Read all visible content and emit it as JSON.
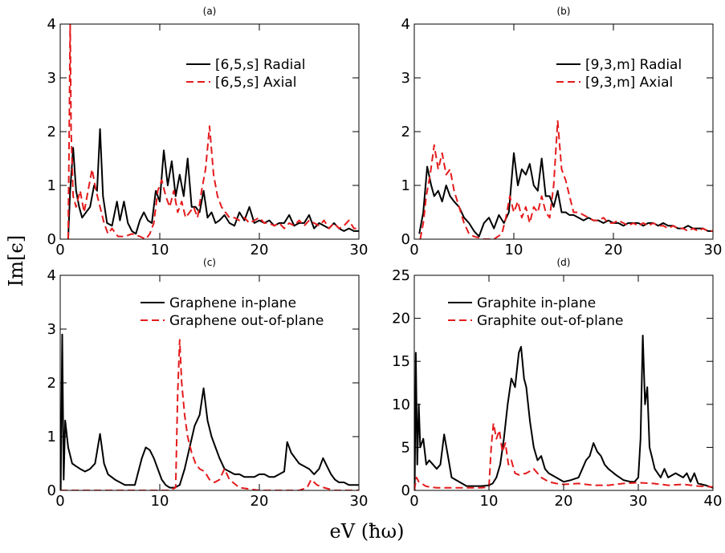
{
  "figure": {
    "ylabel": "Im[ϵ]",
    "xlabel": "eV (ħω)"
  },
  "chart_data": [
    {
      "type": "line",
      "panel": "(a)",
      "xlim": [
        0,
        30
      ],
      "ylim": [
        0,
        4
      ],
      "xticks": [
        0,
        10,
        20,
        30
      ],
      "yticks": [
        0,
        1,
        2,
        3,
        4
      ],
      "legend_position": "top-right",
      "series": [
        {
          "name": "[6,5,s] Radial",
          "color": "#000000",
          "dash": "solid",
          "x": [
            0.8,
            1.0,
            1.3,
            1.6,
            1.9,
            2.2,
            2.6,
            3.0,
            3.4,
            3.7,
            4.0,
            4.3,
            4.7,
            5.2,
            5.7,
            6.0,
            6.4,
            6.8,
            7.2,
            7.6,
            8.0,
            8.4,
            8.8,
            9.2,
            9.6,
            10.0,
            10.4,
            10.8,
            11.2,
            11.6,
            12.0,
            12.4,
            12.8,
            13.2,
            13.6,
            14.0,
            14.4,
            14.8,
            15.2,
            15.6,
            16.0,
            16.5,
            17.0,
            17.5,
            18.0,
            18.5,
            19.0,
            19.5,
            20.0,
            20.5,
            21.0,
            21.5,
            22.0,
            22.5,
            23.0,
            23.5,
            24.0,
            24.5,
            25.0,
            25.5,
            26.0,
            26.5,
            27.0,
            27.5,
            28.0,
            28.5,
            29.0,
            29.5,
            30.0
          ],
          "y": [
            0.0,
            0.9,
            1.7,
            0.9,
            0.6,
            0.4,
            0.5,
            0.6,
            1.0,
            0.9,
            2.05,
            0.8,
            0.3,
            0.25,
            0.7,
            0.35,
            0.7,
            0.3,
            0.15,
            0.1,
            0.35,
            0.5,
            0.35,
            0.3,
            0.9,
            0.7,
            1.65,
            1.0,
            1.45,
            0.8,
            1.2,
            0.8,
            1.5,
            0.6,
            0.6,
            0.5,
            0.9,
            0.4,
            0.5,
            0.3,
            0.35,
            0.45,
            0.3,
            0.25,
            0.5,
            0.35,
            0.6,
            0.3,
            0.35,
            0.3,
            0.35,
            0.25,
            0.3,
            0.3,
            0.45,
            0.25,
            0.3,
            0.3,
            0.45,
            0.2,
            0.3,
            0.25,
            0.2,
            0.3,
            0.2,
            0.15,
            0.2,
            0.15,
            0.15
          ]
        },
        {
          "name": "[6,5,s] Axial",
          "color": "#e41a1c",
          "dash": "dashed",
          "x": [
            0.8,
            0.9,
            1.0,
            1.1,
            1.3,
            1.6,
            2.0,
            2.4,
            2.8,
            3.2,
            3.6,
            4.0,
            4.4,
            4.8,
            5.2,
            5.8,
            6.5,
            7.2,
            8.0,
            8.6,
            9.0,
            9.4,
            9.8,
            10.2,
            10.6,
            11.0,
            11.4,
            11.8,
            12.2,
            12.6,
            13.0,
            13.4,
            13.8,
            14.2,
            14.6,
            15.0,
            15.4,
            15.8,
            16.2,
            16.6,
            17.0,
            17.5,
            18.0,
            18.5,
            19.0,
            19.5,
            20.0,
            20.5,
            21.0,
            21.5,
            22.0,
            22.5,
            23.0,
            23.5,
            24.0,
            24.5,
            25.0,
            25.5,
            26.0,
            26.5,
            27.0,
            27.5,
            28.0,
            28.5,
            29.0,
            29.5,
            30.0
          ],
          "y": [
            0.0,
            2.0,
            4.0,
            2.0,
            0.8,
            0.6,
            0.9,
            0.5,
            0.9,
            1.3,
            0.9,
            0.6,
            0.3,
            0.1,
            0.2,
            0.05,
            0.05,
            0.1,
            0.05,
            0.0,
            0.1,
            0.3,
            0.9,
            1.1,
            0.8,
            0.6,
            0.9,
            0.5,
            0.7,
            0.4,
            0.5,
            0.6,
            0.4,
            0.9,
            1.3,
            2.1,
            1.2,
            0.8,
            0.6,
            0.5,
            0.4,
            0.4,
            0.35,
            0.4,
            0.3,
            0.35,
            0.4,
            0.3,
            0.3,
            0.25,
            0.3,
            0.2,
            0.3,
            0.25,
            0.35,
            0.25,
            0.35,
            0.3,
            0.25,
            0.35,
            0.2,
            0.3,
            0.2,
            0.25,
            0.35,
            0.2,
            0.2
          ]
        }
      ]
    },
    {
      "type": "line",
      "panel": "(b)",
      "xlim": [
        0,
        30
      ],
      "ylim": [
        0,
        4
      ],
      "xticks": [
        0,
        10,
        20,
        30
      ],
      "yticks": [
        0,
        1,
        2,
        3,
        4
      ],
      "legend_position": "top-right",
      "series": [
        {
          "name": "[9,3,m] Radial",
          "color": "#000000",
          "dash": "solid",
          "x": [
            0.5,
            0.9,
            1.3,
            1.7,
            2.0,
            2.4,
            2.8,
            3.2,
            3.6,
            4.0,
            4.5,
            5.0,
            5.5,
            6.0,
            6.5,
            7.0,
            7.5,
            8.0,
            8.5,
            9.0,
            9.5,
            10.0,
            10.4,
            10.8,
            11.2,
            11.6,
            12.0,
            12.4,
            12.8,
            13.2,
            13.6,
            14.0,
            14.4,
            14.8,
            15.2,
            15.6,
            16.0,
            16.5,
            17.0,
            17.5,
            18.0,
            18.5,
            19.0,
            19.5,
            20.0,
            20.5,
            21.0,
            21.5,
            22.0,
            22.5,
            23.0,
            23.5,
            24.0,
            24.5,
            25.0,
            25.5,
            26.0,
            26.5,
            27.0,
            27.5,
            28.0,
            28.5,
            29.0,
            29.5,
            30.0
          ],
          "y": [
            0.1,
            0.5,
            1.35,
            1.0,
            0.8,
            0.9,
            0.7,
            1.0,
            0.8,
            0.7,
            0.6,
            0.4,
            0.3,
            0.15,
            0.05,
            0.3,
            0.4,
            0.2,
            0.45,
            0.3,
            0.5,
            1.6,
            1.0,
            1.3,
            1.2,
            1.4,
            1.0,
            0.9,
            1.5,
            0.8,
            0.8,
            0.6,
            0.9,
            0.5,
            0.5,
            0.45,
            0.45,
            0.4,
            0.35,
            0.4,
            0.35,
            0.35,
            0.3,
            0.35,
            0.3,
            0.3,
            0.25,
            0.3,
            0.3,
            0.3,
            0.25,
            0.3,
            0.3,
            0.25,
            0.3,
            0.25,
            0.25,
            0.2,
            0.2,
            0.25,
            0.2,
            0.2,
            0.2,
            0.15,
            0.15
          ]
        },
        {
          "name": "[9,3,m] Axial",
          "color": "#e41a1c",
          "dash": "dashed",
          "x": [
            0.6,
            0.9,
            1.2,
            1.6,
            2.0,
            2.4,
            2.8,
            3.2,
            3.6,
            4.0,
            4.5,
            5.0,
            5.5,
            6.0,
            7.0,
            8.0,
            8.8,
            9.2,
            9.6,
            10.0,
            10.4,
            10.8,
            11.2,
            11.6,
            12.0,
            12.4,
            12.8,
            13.2,
            13.6,
            14.0,
            14.4,
            14.8,
            15.2,
            15.6,
            16.0,
            16.5,
            17.0,
            17.5,
            18.0,
            18.5,
            19.0,
            19.5,
            20.0,
            20.5,
            21.0,
            21.5,
            22.0,
            22.5,
            23.0,
            23.5,
            24.0,
            24.5,
            25.0,
            25.5,
            26.0,
            26.5,
            27.0,
            27.5,
            28.0,
            28.5,
            29.0,
            29.5,
            30.0
          ],
          "y": [
            0.0,
            0.3,
            0.8,
            1.2,
            1.75,
            1.3,
            1.6,
            1.2,
            1.3,
            0.9,
            0.6,
            0.3,
            0.1,
            0.05,
            0.0,
            0.0,
            0.1,
            0.4,
            0.8,
            0.5,
            0.7,
            0.4,
            0.6,
            0.3,
            0.6,
            0.5,
            0.8,
            0.5,
            0.4,
            1.0,
            2.2,
            1.3,
            1.1,
            0.8,
            0.5,
            0.5,
            0.45,
            0.4,
            0.35,
            0.35,
            0.4,
            0.3,
            0.3,
            0.35,
            0.3,
            0.25,
            0.3,
            0.25,
            0.3,
            0.25,
            0.3,
            0.25,
            0.25,
            0.2,
            0.25,
            0.2,
            0.2,
            0.15,
            0.2,
            0.15,
            0.2,
            0.15,
            0.15
          ]
        }
      ]
    },
    {
      "type": "line",
      "panel": "(c)",
      "xlim": [
        0,
        30
      ],
      "ylim": [
        0,
        4
      ],
      "xticks": [
        0,
        10,
        20,
        30
      ],
      "yticks": [
        0,
        1,
        2,
        3,
        4
      ],
      "legend_position": "top-right",
      "series": [
        {
          "name": "Graphene in-plane",
          "color": "#000000",
          "dash": "solid",
          "x": [
            0.05,
            0.2,
            0.35,
            0.5,
            0.8,
            1.2,
            1.6,
            2.0,
            2.5,
            3.0,
            3.5,
            4.0,
            4.4,
            4.8,
            5.5,
            6.5,
            7.5,
            8.2,
            8.6,
            9.0,
            9.4,
            9.8,
            10.2,
            10.6,
            11.0,
            11.5,
            12.0,
            12.5,
            13.0,
            13.5,
            14.0,
            14.4,
            14.8,
            15.2,
            15.6,
            16.0,
            16.5,
            17.0,
            17.5,
            18.0,
            18.5,
            19.0,
            19.5,
            20.0,
            20.5,
            21.0,
            21.5,
            22.0,
            22.5,
            22.8,
            23.2,
            23.6,
            24.0,
            24.5,
            25.0,
            25.5,
            26.0,
            26.4,
            26.8,
            27.2,
            27.6,
            28.0,
            28.5,
            29.0,
            29.5,
            30.0
          ],
          "y": [
            0.0,
            2.9,
            0.2,
            1.3,
            0.8,
            0.5,
            0.45,
            0.4,
            0.35,
            0.4,
            0.5,
            1.05,
            0.5,
            0.3,
            0.2,
            0.1,
            0.1,
            0.6,
            0.8,
            0.75,
            0.6,
            0.4,
            0.2,
            0.1,
            0.05,
            0.05,
            0.1,
            0.4,
            0.8,
            1.2,
            1.4,
            1.9,
            1.3,
            1.0,
            0.8,
            0.6,
            0.4,
            0.35,
            0.3,
            0.3,
            0.25,
            0.25,
            0.25,
            0.3,
            0.3,
            0.25,
            0.25,
            0.3,
            0.35,
            0.9,
            0.7,
            0.6,
            0.5,
            0.45,
            0.4,
            0.3,
            0.4,
            0.6,
            0.45,
            0.3,
            0.2,
            0.15,
            0.15,
            0.1,
            0.1,
            0.1
          ]
        },
        {
          "name": "Graphene out-of-plane",
          "color": "#e41a1c",
          "dash": "dashed",
          "x": [
            0.0,
            2.0,
            4.0,
            6.0,
            8.0,
            10.0,
            11.0,
            11.6,
            11.8,
            12.0,
            12.2,
            12.5,
            12.8,
            13.2,
            13.6,
            14.0,
            14.5,
            15.0,
            15.5,
            16.0,
            16.5,
            17.0,
            18.0,
            20.0,
            22.0,
            24.0,
            24.8,
            25.2,
            25.8,
            26.5,
            27.5,
            28.5,
            30.0
          ],
          "y": [
            0.0,
            0.0,
            0.0,
            0.0,
            0.0,
            0.0,
            0.0,
            0.05,
            1.8,
            2.8,
            2.0,
            1.4,
            1.0,
            0.7,
            0.5,
            0.4,
            0.35,
            0.2,
            0.15,
            0.2,
            0.4,
            0.2,
            0.05,
            0.0,
            0.0,
            0.0,
            0.05,
            0.2,
            0.1,
            0.05,
            0.0,
            0.0,
            0.0
          ]
        }
      ]
    },
    {
      "type": "line",
      "panel": "(d)",
      "xlim": [
        0,
        40
      ],
      "ylim": [
        0,
        25
      ],
      "xticks": [
        0,
        10,
        20,
        30,
        40
      ],
      "yticks": [
        0,
        5,
        10,
        15,
        20,
        25
      ],
      "legend_position": "top-right",
      "series": [
        {
          "name": "Graphite in-plane",
          "color": "#000000",
          "dash": "solid",
          "x": [
            0.05,
            0.2,
            0.4,
            0.6,
            0.8,
            1.2,
            1.6,
            2.0,
            2.5,
            3.0,
            3.5,
            4.0,
            4.5,
            5.0,
            6.0,
            7.0,
            8.0,
            9.0,
            10.0,
            10.5,
            11.0,
            11.5,
            12.0,
            12.5,
            13.0,
            13.5,
            14.0,
            14.3,
            14.7,
            15.0,
            15.5,
            16.0,
            16.5,
            17.0,
            17.5,
            18.0,
            19.0,
            20.0,
            21.0,
            22.0,
            22.5,
            23.0,
            23.5,
            24.0,
            24.5,
            25.0,
            25.5,
            26.0,
            27.0,
            28.0,
            29.0,
            29.5,
            30.0,
            30.3,
            30.6,
            30.9,
            31.2,
            31.5,
            31.8,
            32.2,
            32.6,
            33.0,
            33.5,
            34.0,
            35.0,
            36.0,
            36.5,
            37.0,
            37.5,
            38.0,
            39.0,
            40.0
          ],
          "y": [
            0.0,
            16.0,
            3.0,
            10.0,
            5.0,
            6.0,
            3.0,
            3.5,
            3.0,
            2.5,
            3.0,
            6.5,
            4.0,
            1.5,
            1.0,
            0.5,
            0.5,
            0.5,
            0.6,
            0.8,
            1.5,
            3.0,
            6.0,
            10.0,
            13.0,
            12.0,
            16.0,
            16.7,
            13.0,
            12.0,
            8.0,
            5.0,
            3.5,
            4.0,
            2.5,
            2.0,
            1.5,
            1.0,
            1.2,
            1.5,
            2.5,
            3.5,
            4.0,
            5.5,
            4.5,
            4.0,
            3.0,
            2.5,
            1.8,
            1.2,
            1.0,
            1.0,
            1.5,
            6.0,
            18.0,
            10.0,
            12.0,
            5.0,
            4.0,
            2.5,
            2.0,
            1.5,
            2.5,
            1.5,
            2.0,
            1.5,
            2.0,
            1.0,
            2.0,
            0.8,
            0.6,
            0.3
          ]
        },
        {
          "name": "Graphite out-of-plane",
          "color": "#e41a1c",
          "dash": "dashed",
          "x": [
            0.0,
            0.3,
            0.6,
            1.0,
            1.5,
            2.0,
            3.0,
            4.0,
            5.0,
            6.0,
            7.0,
            8.0,
            9.0,
            10.0,
            10.3,
            10.6,
            11.0,
            11.4,
            11.8,
            12.2,
            12.6,
            13.0,
            13.5,
            14.0,
            15.0,
            16.0,
            17.0,
            18.0,
            19.0,
            20.0,
            22.0,
            24.0,
            26.0,
            28.0,
            30.0,
            32.0,
            34.0,
            36.0,
            38.0,
            40.0
          ],
          "y": [
            0.0,
            1.5,
            1.0,
            0.8,
            0.5,
            0.4,
            0.3,
            0.3,
            0.3,
            0.3,
            0.3,
            0.3,
            0.3,
            0.4,
            5.0,
            7.8,
            6.0,
            7.0,
            4.5,
            5.5,
            3.0,
            3.5,
            2.0,
            1.8,
            2.0,
            2.5,
            1.5,
            1.0,
            0.8,
            0.7,
            0.8,
            0.6,
            0.6,
            0.8,
            0.9,
            0.8,
            0.6,
            0.7,
            0.5,
            0.4
          ]
        }
      ]
    }
  ]
}
